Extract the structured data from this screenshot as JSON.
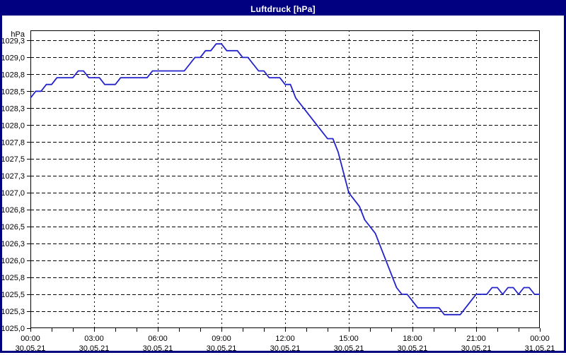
{
  "window": {
    "title": "Luftdruck [hPa]",
    "title_bar_color": "#000080",
    "title_text_color": "#FFFFFF",
    "border_color": "#000080",
    "background_color": "#FFFFFF"
  },
  "chart_data": {
    "type": "line",
    "title": "Luftdruck [hPa]",
    "ylabel": "hPa",
    "xlabel": "",
    "legend": "none",
    "grid": {
      "style": "dashed",
      "color": "#000000",
      "background": "#FFFFFF"
    },
    "x_axis": {
      "unit": "hours",
      "range_hours": [
        0,
        24
      ],
      "major_tick_hours": 3,
      "minor_tick_hours": 1,
      "ticks": [
        {
          "hour": 0,
          "time": "00:00",
          "date": "30.05.21"
        },
        {
          "hour": 3,
          "time": "03:00",
          "date": "30.05.21"
        },
        {
          "hour": 6,
          "time": "06:00",
          "date": "30.05.21"
        },
        {
          "hour": 9,
          "time": "09:00",
          "date": "30.05.21"
        },
        {
          "hour": 12,
          "time": "12:00",
          "date": "30.05.21"
        },
        {
          "hour": 15,
          "time": "15:00",
          "date": "30.05.21"
        },
        {
          "hour": 18,
          "time": "18:00",
          "date": "30.05.21"
        },
        {
          "hour": 21,
          "time": "21:00",
          "date": "30.05.21"
        },
        {
          "hour": 24,
          "time": "00:00",
          "date": "31.05.21"
        }
      ]
    },
    "y_axis": {
      "unit_label": "hPa",
      "ylim": [
        1025.0,
        1029.4
      ],
      "ticks": [
        {
          "label": "1029,3",
          "value": 1029.25
        },
        {
          "label": "1029,0",
          "value": 1029.0
        },
        {
          "label": "1028,8",
          "value": 1028.75
        },
        {
          "label": "1028,5",
          "value": 1028.5
        },
        {
          "label": "1028,3",
          "value": 1028.25
        },
        {
          "label": "1028,0",
          "value": 1028.0
        },
        {
          "label": "1027,8",
          "value": 1027.75
        },
        {
          "label": "1027,5",
          "value": 1027.5
        },
        {
          "label": "1027,3",
          "value": 1027.25
        },
        {
          "label": "1027,0",
          "value": 1027.0
        },
        {
          "label": "1026,8",
          "value": 1026.75
        },
        {
          "label": "1026,5",
          "value": 1026.5
        },
        {
          "label": "1026,3",
          "value": 1026.25
        },
        {
          "label": "1026,0",
          "value": 1026.0
        },
        {
          "label": "1025,8",
          "value": 1025.75
        },
        {
          "label": "1025,5",
          "value": 1025.5
        },
        {
          "label": "1025,3",
          "value": 1025.25
        },
        {
          "label": "1025,0",
          "value": 1025.0
        }
      ]
    },
    "series": [
      {
        "name": "Luftdruck",
        "color": "#2222CC",
        "x_start_hour": 0,
        "x_step_hours": 0.25,
        "values": [
          1028.4,
          1028.5,
          1028.5,
          1028.6,
          1028.6,
          1028.7,
          1028.7,
          1028.7,
          1028.7,
          1028.8,
          1028.8,
          1028.7,
          1028.7,
          1028.7,
          1028.6,
          1028.6,
          1028.6,
          1028.7,
          1028.7,
          1028.7,
          1028.7,
          1028.7,
          1028.7,
          1028.8,
          1028.8,
          1028.8,
          1028.8,
          1028.8,
          1028.8,
          1028.8,
          1028.9,
          1029.0,
          1029.0,
          1029.1,
          1029.1,
          1029.2,
          1029.2,
          1029.1,
          1029.1,
          1029.1,
          1029.0,
          1029.0,
          1028.9,
          1028.8,
          1028.8,
          1028.7,
          1028.7,
          1028.7,
          1028.6,
          1028.6,
          1028.4,
          1028.3,
          1028.2,
          1028.1,
          1028.0,
          1027.9,
          1027.8,
          1027.8,
          1027.6,
          1027.3,
          1027.0,
          1026.9,
          1026.8,
          1026.6,
          1026.5,
          1026.4,
          1026.2,
          1026.0,
          1025.8,
          1025.6,
          1025.5,
          1025.5,
          1025.4,
          1025.3,
          1025.3,
          1025.3,
          1025.3,
          1025.3,
          1025.2,
          1025.2,
          1025.2,
          1025.2,
          1025.3,
          1025.4,
          1025.5,
          1025.5,
          1025.5,
          1025.6,
          1025.6,
          1025.5,
          1025.6,
          1025.6,
          1025.5,
          1025.6,
          1025.6,
          1025.5,
          1025.5
        ]
      }
    ]
  }
}
